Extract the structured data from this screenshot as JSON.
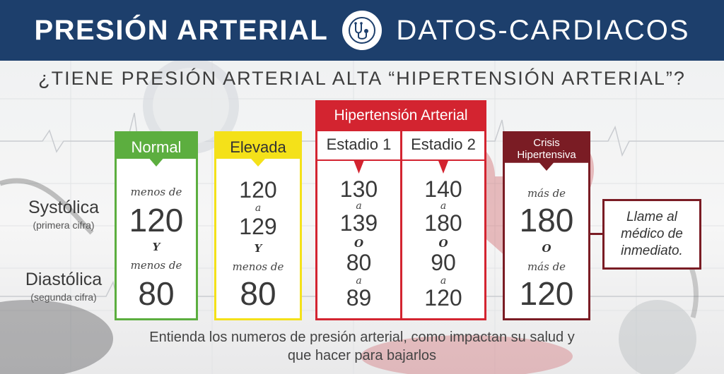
{
  "header": {
    "left_title": "PRESIÓN ARTERIAL",
    "right_title": "DATOS-CARDIACOS",
    "logo_icon": "stethoscope-icon"
  },
  "question": "¿TIENE PRESIÓN ARTERIAL ALTA “HIPERTENSIÓN ARTERIAL”?",
  "row_labels": {
    "systolic": "Systólica",
    "systolic_sub": "(primera cifra)",
    "diastolic": "Diastólica",
    "diastolic_sub": "(segunda cifra)"
  },
  "colors": {
    "header": "#1d3f6c",
    "normal": "#5cae3f",
    "elevada": "#f4e119",
    "hipertension": "#d32430",
    "crisis": "#7a1c24"
  },
  "normal": {
    "title": "Normal",
    "sys_prefix": "menos de",
    "sys_value": "120",
    "conj": "Y",
    "dia_prefix": "menos de",
    "dia_value": "80"
  },
  "elevada": {
    "title": "Elevada",
    "sys_from": "120",
    "a1": "a",
    "sys_to": "129",
    "conj": "Y",
    "dia_prefix": "menos de",
    "dia_value": "80"
  },
  "hipertension": {
    "group_title": "Hipertensión Arterial",
    "stage1": {
      "title": "Estadio 1",
      "sys_from": "130",
      "a1": "a",
      "sys_to": "139",
      "conj": "O",
      "dia_from": "80",
      "a2": "a",
      "dia_to": "89"
    },
    "stage2": {
      "title": "Estadio 2",
      "sys_from": "140",
      "a1": "a",
      "sys_to": "180",
      "conj": "O",
      "dia_from": "90",
      "a2": "a",
      "dia_to": "120"
    }
  },
  "crisis": {
    "title_line1": "Crisis",
    "title_line2": "Hipertensiva",
    "sys_prefix": "más de",
    "sys_value": "180",
    "conj": "O",
    "dia_prefix": "más de",
    "dia_value": "120",
    "note_line1": "Llame al",
    "note_line2": "médico de",
    "note_line3": "inmediato."
  },
  "footer": {
    "line1": "Entienda los numeros de presión arterial, como impactan su salud y",
    "line2": "que hacer para bajarlos"
  }
}
